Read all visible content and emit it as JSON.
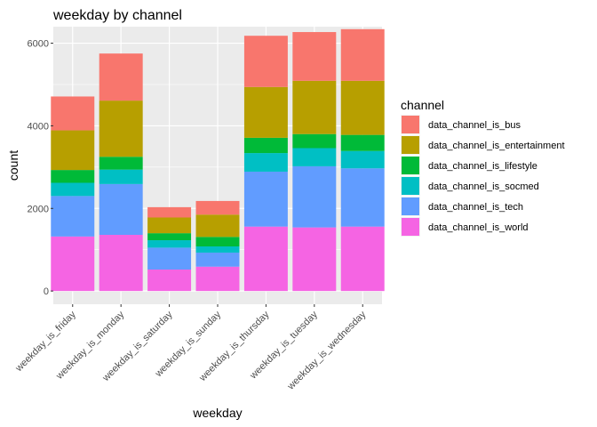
{
  "chart_data": {
    "type": "bar",
    "stacked": true,
    "title": "weekday by channel",
    "xlabel": "weekday",
    "ylabel": "count",
    "ylim": [
      0,
      6400
    ],
    "yticks": [
      0,
      2000,
      4000,
      6000
    ],
    "grid": true,
    "legend": {
      "title": "channel",
      "position": "right"
    },
    "categories": [
      "weekday_is_friday",
      "weekday_is_monday",
      "weekday_is_saturday",
      "weekday_is_sunday",
      "weekday_is_thursday",
      "weekday_is_tuesday",
      "weekday_is_wednesday"
    ],
    "series": [
      {
        "name": "data_channel_is_world",
        "color": "#F564E3",
        "values": [
          1320,
          1360,
          520,
          590,
          1560,
          1540,
          1560
        ]
      },
      {
        "name": "data_channel_is_tech",
        "color": "#619CFF",
        "values": [
          980,
          1230,
          530,
          340,
          1330,
          1480,
          1410
        ]
      },
      {
        "name": "data_channel_is_socmed",
        "color": "#00BFC4",
        "values": [
          320,
          350,
          180,
          150,
          450,
          440,
          420
        ]
      },
      {
        "name": "data_channel_is_lifestyle",
        "color": "#00BA38",
        "values": [
          310,
          310,
          170,
          230,
          370,
          340,
          390
        ]
      },
      {
        "name": "data_channel_is_entertainment",
        "color": "#B79F00",
        "values": [
          960,
          1360,
          380,
          540,
          1230,
          1290,
          1310
        ]
      },
      {
        "name": "data_channel_is_bus",
        "color": "#F8766D",
        "values": [
          820,
          1140,
          250,
          330,
          1240,
          1180,
          1250
        ]
      }
    ],
    "legend_order": [
      "data_channel_is_bus",
      "data_channel_is_entertainment",
      "data_channel_is_lifestyle",
      "data_channel_is_socmed",
      "data_channel_is_tech",
      "data_channel_is_world"
    ]
  }
}
